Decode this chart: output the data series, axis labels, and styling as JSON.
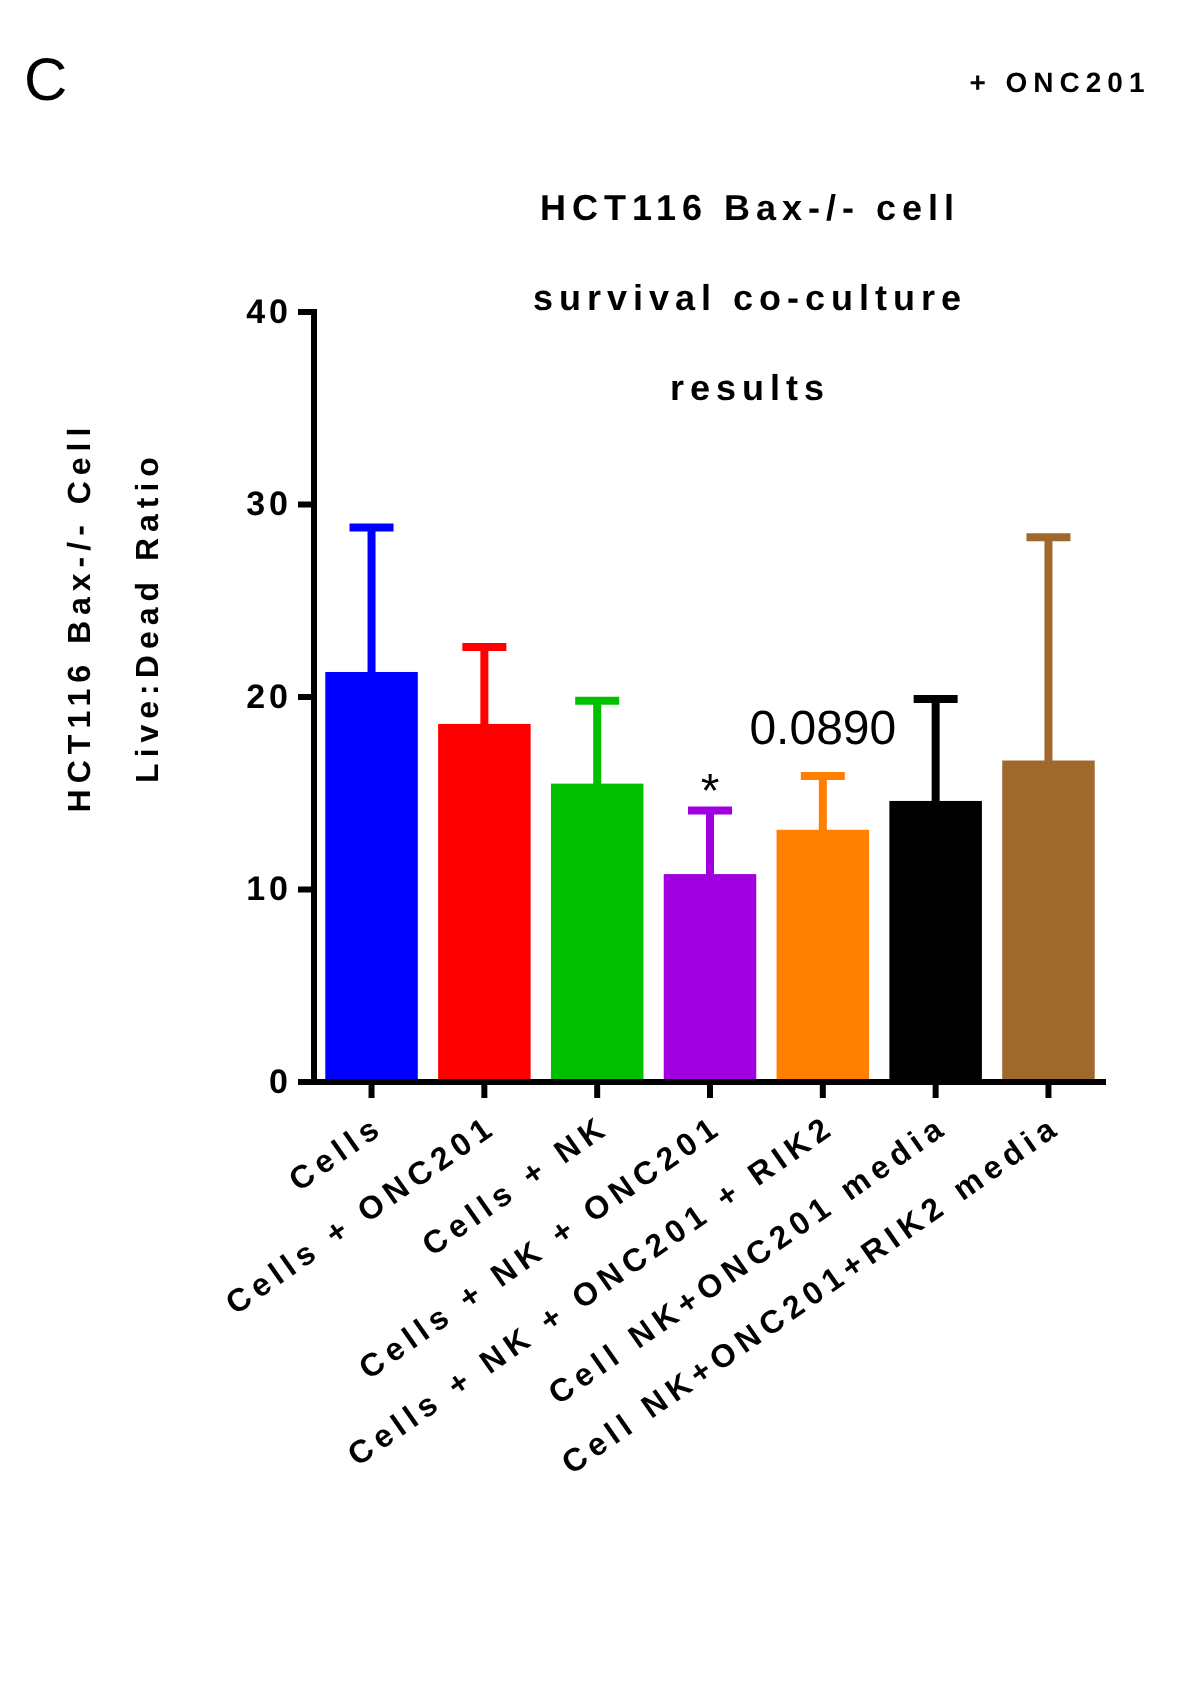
{
  "chart_data": {
    "type": "bar",
    "title": "HCT116 Bax-/- cell survival co-culture results",
    "ylabel": "HCT116 Bax-/- Cell Live:Dead Ratio",
    "categories": [
      "Cells",
      "Cells + ONC201",
      "Cells + NK",
      "Cells + NK + ONC201",
      "Cells + NK + ONC201 + RIK2",
      "Cell NK+ONC201 media",
      "Cell NK+ONC201+RIK2 media"
    ],
    "values": [
      21.3,
      18.6,
      15.5,
      10.8,
      13.1,
      14.6,
      16.7
    ],
    "colors": [
      "#0000ff",
      "#ff0000",
      "#00c000",
      "#a000e0",
      "#ff8000",
      "#000000",
      "#a0692c"
    ],
    "errors": [
      7.5,
      4.0,
      4.3,
      3.3,
      2.8,
      5.3,
      11.6
    ],
    "ylim": [
      0,
      40
    ],
    "yticks": [
      0,
      10,
      20,
      30,
      40
    ],
    "annotations": [
      "C",
      "+ ONC201",
      {
        "text": "*",
        "x": "Cells + NK + ONC201",
        "y": 14.3
      },
      "0.0890"
    ]
  }
}
